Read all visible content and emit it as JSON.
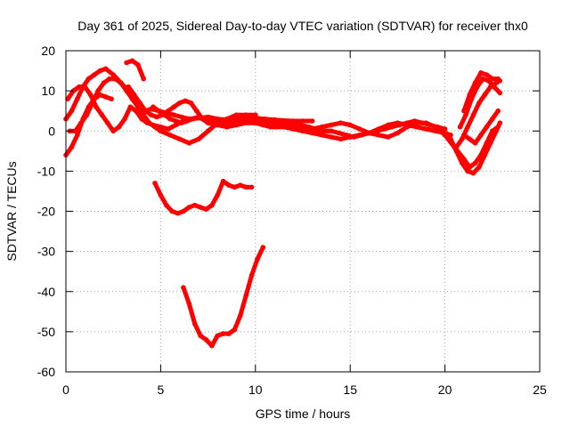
{
  "chart_data": {
    "type": "scatter",
    "title": "Day 361 of 2025, Sidereal Day-to-day VTEC variation (SDTVAR) for receiver thx0",
    "xlabel": "GPS time / hours",
    "ylabel": "SDTVAR / TECUs",
    "xlim": [
      0,
      25
    ],
    "ylim": [
      -60,
      20
    ],
    "xticks": [
      0,
      5,
      10,
      15,
      20,
      25
    ],
    "yticks": [
      -60,
      -50,
      -40,
      -30,
      -20,
      -10,
      0,
      10,
      20
    ],
    "xtick_labels": [
      "0",
      "5",
      "10",
      "15",
      "20",
      "25"
    ],
    "ytick_labels": [
      "-60",
      "-50",
      "-40",
      "-30",
      "-20",
      "-10",
      "0",
      "10",
      "20"
    ],
    "grid": true,
    "legend": "none",
    "color": "#ff0000",
    "series": [
      {
        "name": "track-1",
        "x": [
          0.0,
          0.3,
          0.6,
          0.9,
          1.2,
          1.5,
          1.8,
          2.1,
          2.5,
          2.9,
          3.3,
          3.6,
          3.9,
          4.2,
          4.5,
          4.9,
          5.3,
          5.7,
          6.1,
          6.5,
          7.0,
          7.5,
          8.0,
          8.5,
          9.0,
          9.5,
          10.0,
          10.5,
          11.0,
          11.5,
          12.0,
          12.5,
          13.0
        ],
        "y": [
          3,
          5,
          8,
          11,
          13,
          14,
          15,
          15.5,
          14,
          12,
          10,
          8,
          6,
          5,
          5.5,
          5,
          4.5,
          4,
          3.5,
          3,
          3.2,
          3.5,
          3,
          2.8,
          3,
          3.5,
          3.2,
          3,
          2.8,
          2.6,
          2.5,
          2.5,
          2.5
        ]
      },
      {
        "name": "track-2",
        "x": [
          0.0,
          0.3,
          0.6,
          0.9,
          1.2,
          1.5,
          1.8,
          2.1,
          2.4
        ],
        "y": [
          -6,
          -4,
          -1,
          3,
          6,
          8,
          9,
          8.5,
          8
        ]
      },
      {
        "name": "track-3",
        "x": [
          0.1,
          0.4,
          0.7,
          1.0,
          1.3,
          1.6,
          1.9,
          2.2,
          2.5,
          2.8,
          3.1,
          3.4,
          3.7,
          4.0,
          4.3,
          4.6,
          5.0,
          5.4,
          5.8,
          6.2,
          6.6,
          7.0,
          7.5,
          8.0,
          8.5,
          9.0,
          9.5,
          10.0,
          10.5,
          11.0,
          11.5,
          12.0,
          12.5,
          13.0,
          13.5,
          14.0
        ],
        "y": [
          8,
          10,
          11,
          11,
          9,
          6,
          4,
          2,
          0,
          1,
          3,
          6,
          5,
          3,
          2,
          1.5,
          1,
          0.5,
          1.5,
          2.5,
          3,
          3.5,
          3,
          2.5,
          2,
          2.5,
          3,
          2.5,
          2,
          1.5,
          1,
          1,
          0.5,
          0.5,
          0,
          0
        ]
      },
      {
        "name": "track-4",
        "x": [
          0.2,
          0.5,
          0.8,
          1.1,
          1.4,
          1.7,
          2.0,
          2.3,
          2.6,
          2.9,
          3.2,
          3.5,
          3.8,
          4.1,
          4.4,
          4.7,
          5.0,
          5.5,
          6.0,
          6.5,
          7.0,
          7.5,
          8.0,
          8.5,
          9.0,
          9.5,
          10.0
        ],
        "y": [
          0,
          0,
          2,
          4,
          7,
          10,
          12,
          13,
          13,
          12,
          10,
          8,
          6,
          4,
          2,
          1,
          0,
          -1,
          -2,
          -3,
          -2,
          0,
          2,
          3,
          4,
          4,
          4
        ]
      },
      {
        "name": "track-5",
        "x": [
          3.3,
          3.6,
          3.9,
          4.2,
          4.5,
          4.8,
          5.1,
          5.4,
          5.7,
          6.0,
          6.3,
          6.6,
          6.9,
          7.2,
          7.5,
          8.0,
          8.5,
          9.0,
          9.5,
          10.0,
          10.5,
          11.0,
          11.5,
          12.0,
          12.5,
          13.0,
          13.5,
          14.0,
          14.5,
          15.0,
          15.5,
          16.0,
          16.5,
          17.0,
          17.5,
          18.0,
          18.5,
          19.0,
          19.5,
          20.0,
          20.3
        ],
        "y": [
          11,
          9,
          7,
          5,
          4,
          3.5,
          4,
          5,
          6,
          7,
          7.5,
          7,
          5,
          3,
          2,
          1.5,
          1,
          1.5,
          2,
          2,
          1.5,
          1,
          1,
          0.5,
          0,
          -0.5,
          -1,
          -1.5,
          -2,
          -1.5,
          -1,
          -0.5,
          0.5,
          1.5,
          2,
          1.5,
          1,
          0.5,
          0,
          -0.5,
          -1
        ]
      },
      {
        "name": "track-6",
        "x": [
          3.2,
          3.5,
          3.8,
          4.1
        ],
        "y": [
          17,
          17.5,
          16.5,
          13
        ]
      },
      {
        "name": "track-7",
        "x": [
          4.6,
          4.9,
          5.2,
          5.5,
          5.8,
          6.1,
          6.4,
          6.7,
          7.0,
          7.3,
          7.6,
          7.9,
          8.2,
          8.5,
          8.8,
          9.1,
          9.4,
          9.7,
          10.0,
          10.4,
          10.8,
          11.2,
          11.6,
          12.0,
          12.4,
          12.8,
          13.2,
          13.6,
          14.0,
          14.4,
          14.8,
          15.2,
          15.6,
          16.0,
          16.4,
          16.8,
          17.2,
          17.6,
          18.0,
          18.4,
          18.8,
          19.2,
          19.6,
          20.0
        ],
        "y": [
          6,
          5,
          4,
          3,
          2.5,
          2,
          2.5,
          3,
          3.5,
          3,
          2.5,
          2,
          2,
          2.5,
          3,
          3.5,
          3,
          2.5,
          2,
          1.5,
          1,
          1,
          1.5,
          2,
          1.5,
          1,
          0.5,
          0,
          0,
          -0.5,
          -1,
          -1.5,
          -1,
          -0.5,
          0,
          0.5,
          1,
          1.5,
          2,
          2.5,
          2,
          1.5,
          1,
          0.5
        ]
      },
      {
        "name": "track-8",
        "x": [
          4.7,
          5.0,
          5.3,
          5.6,
          5.9,
          6.2,
          6.5,
          6.8,
          7.1,
          7.4,
          7.7,
          8.0,
          8.3,
          8.6,
          8.9,
          9.2,
          9.5,
          9.8
        ],
        "y": [
          -13,
          -16,
          -18.5,
          -20,
          -20.5,
          -20,
          -19,
          -18.5,
          -19,
          -19.5,
          -18.5,
          -16,
          -12.5,
          -13.5,
          -14,
          -13.5,
          -14,
          -14
        ]
      },
      {
        "name": "track-9",
        "x": [
          6.2,
          6.5,
          6.8,
          7.1,
          7.4,
          7.7,
          8.0,
          8.3,
          8.6,
          8.9,
          9.2,
          9.5,
          9.8,
          10.1,
          10.4
        ],
        "y": [
          -39,
          -43,
          -48,
          -51,
          -52,
          -53.5,
          -51,
          -50.5,
          -50.5,
          -49.5,
          -46,
          -41,
          -36,
          -32,
          -29
        ]
      },
      {
        "name": "track-10",
        "x": [
          10.0,
          10.5,
          11.0,
          11.5,
          12.0,
          12.5,
          13.0,
          13.5,
          14.0,
          14.5,
          15.0,
          15.5,
          16.0,
          16.5,
          17.0,
          17.5,
          18.0,
          18.5,
          19.0,
          19.5,
          20.0,
          20.5,
          21.0,
          21.3,
          21.6,
          21.9,
          22.2,
          22.5,
          22.8
        ],
        "y": [
          3,
          2.5,
          2,
          2,
          1.5,
          1,
          0.5,
          1,
          1.5,
          2,
          1.5,
          0.5,
          -0.5,
          -1,
          -1.5,
          -0.5,
          1,
          2,
          2,
          1,
          -1,
          -4,
          -7,
          -9,
          -8,
          -6,
          -3,
          0,
          1
        ]
      },
      {
        "name": "track-11",
        "x": [
          20.3,
          20.6,
          20.9,
          21.2,
          21.5,
          21.8,
          22.1,
          22.4,
          22.7,
          22.9
        ],
        "y": [
          -2,
          -5,
          -8,
          -10,
          -10.5,
          -9,
          -6,
          -3,
          0,
          2
        ]
      },
      {
        "name": "track-12",
        "x": [
          20.6,
          20.9,
          21.2,
          21.5,
          21.8,
          22.1,
          22.4,
          22.7,
          22.9
        ],
        "y": [
          -4,
          -2,
          1,
          4,
          7,
          9,
          11,
          12,
          12.5
        ]
      },
      {
        "name": "track-13",
        "x": [
          20.8,
          21.1,
          21.4,
          21.7,
          22.0,
          22.3,
          22.6,
          22.9
        ],
        "y": [
          1,
          4,
          8,
          11,
          13,
          12.5,
          11,
          9.5
        ]
      },
      {
        "name": "track-14",
        "x": [
          21.0,
          21.3,
          21.6,
          21.9,
          22.2,
          22.5,
          22.8
        ],
        "y": [
          5,
          9,
          12,
          14.5,
          14,
          13,
          13
        ]
      },
      {
        "name": "track-15",
        "x": [
          21.0,
          21.3,
          21.6,
          21.9,
          22.2,
          22.5,
          22.8
        ],
        "y": [
          -1,
          -2,
          -3,
          -1,
          1,
          3,
          5
        ]
      }
    ]
  }
}
